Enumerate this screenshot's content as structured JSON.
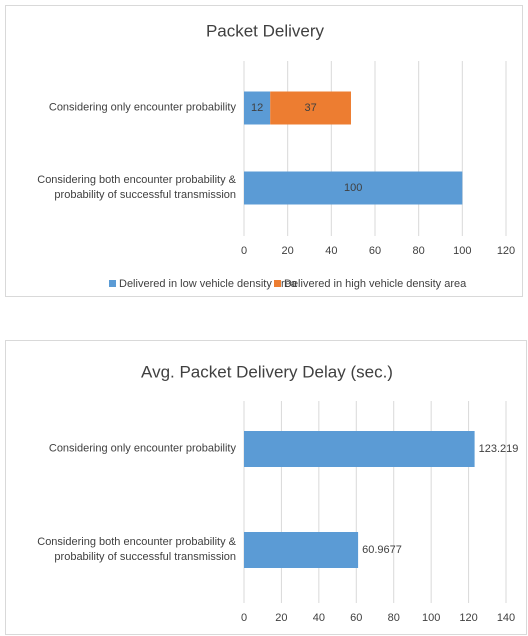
{
  "chart_data": [
    {
      "type": "bar",
      "orientation": "horizontal",
      "stacked": true,
      "title": "Packet Delivery",
      "categories": [
        "Considering only encounter probability",
        "Considering both encounter probability & probability of successful transmission"
      ],
      "series": [
        {
          "name": "Delivered in low vehicle density area",
          "color": "#5b9bd5",
          "values": [
            12,
            100
          ]
        },
        {
          "name": "Delivered in high vehicle density area",
          "color": "#ed7d31",
          "values": [
            37,
            null
          ]
        }
      ],
      "xlim": [
        0,
        120
      ],
      "xticks": [
        0,
        20,
        40,
        60,
        80,
        100,
        120
      ],
      "grid": true,
      "legend": "bottom",
      "value_label_position": "center"
    },
    {
      "type": "bar",
      "orientation": "horizontal",
      "title": "Avg. Packet Delivery Delay (sec.)",
      "categories": [
        "Considering only encounter probability",
        "Considering both encounter probability & probability of successful transmission"
      ],
      "values": [
        123.219,
        60.9677
      ],
      "color": "#5b9bd5",
      "xlim": [
        0,
        140
      ],
      "xticks": [
        0,
        20,
        40,
        60,
        80,
        100,
        120,
        140
      ],
      "grid": true,
      "value_label_position": "outside"
    }
  ]
}
